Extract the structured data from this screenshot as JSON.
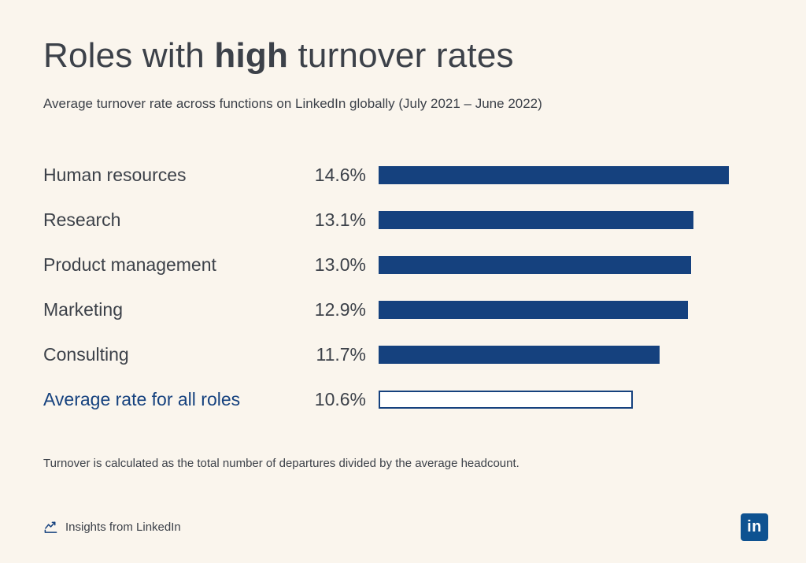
{
  "colors": {
    "background": "#FAF5ED",
    "bar": "#15417E",
    "accent_text": "#15417E",
    "title_text": "#3C4149",
    "body_text": "#3C4149",
    "logo": "#0E5291"
  },
  "title": {
    "prefix": "Roles with ",
    "highlight": "high",
    "suffix": " turnover rates"
  },
  "subtitle": "Average turnover rate across functions on LinkedIn globally (July 2021 – June 2022)",
  "chart_data": {
    "type": "bar",
    "orientation": "horizontal",
    "title": "Roles with high turnover rates",
    "subtitle": "Average turnover rate across functions on LinkedIn globally (July 2021 – June 2022)",
    "categories": [
      "Human resources",
      "Research",
      "Product management",
      "Marketing",
      "Consulting",
      "Average rate for all roles"
    ],
    "values": [
      14.6,
      13.1,
      13.0,
      12.9,
      11.7,
      10.6
    ],
    "value_labels": [
      "14.6%",
      "13.1%",
      "13.0%",
      "12.9%",
      "11.7%",
      "10.6%"
    ],
    "xlim": [
      0,
      15
    ],
    "grid": false,
    "legend": false,
    "highlight_row": {
      "index": 5,
      "style": "outlined",
      "label_color": "#15417E"
    }
  },
  "footnote": "Turnover is calculated as the total number of departures divided by the average headcount.",
  "footer": {
    "insights_label": "Insights from LinkedIn",
    "logo_text": "in"
  }
}
